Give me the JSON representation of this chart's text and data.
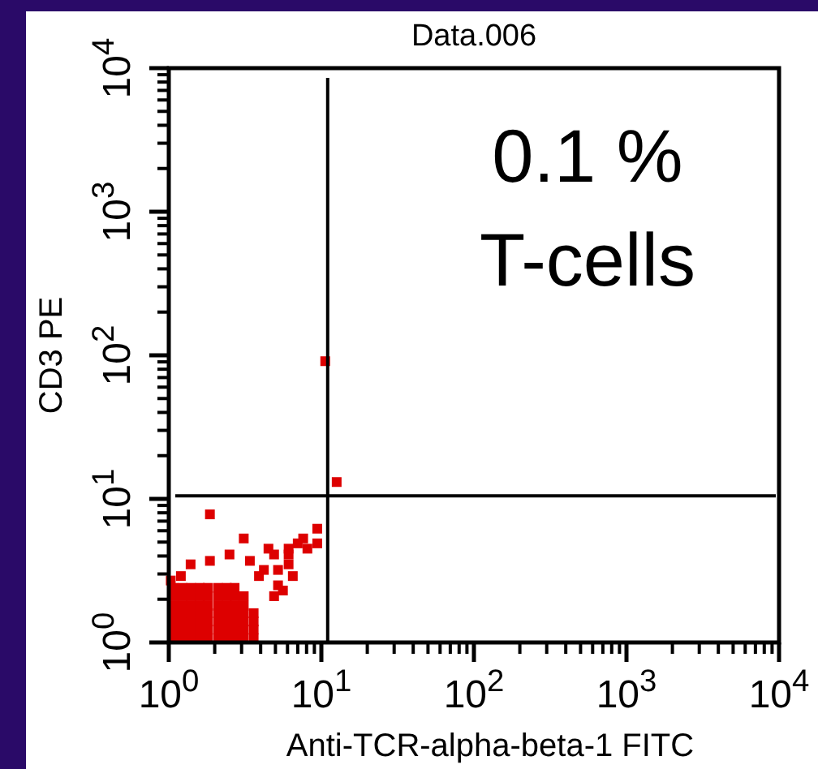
{
  "chart_data": {
    "type": "scatter",
    "title": "Data.006",
    "xlabel": "Anti-TCR-alpha-beta-1 FITC",
    "ylabel": "CD3 PE",
    "log": "xy",
    "marker": "square",
    "xlim": [
      1,
      10000
    ],
    "ylim": [
      1,
      10000
    ],
    "xticks": [
      {
        "value": 1,
        "label": "10$^{0}$"
      },
      {
        "value": 10,
        "label": "10$^{1}$"
      },
      {
        "value": 100,
        "label": "10$^{2}$"
      },
      {
        "value": 1000,
        "label": "10$^{3}$"
      },
      {
        "value": 10000,
        "label": "10$^{4}$"
      }
    ],
    "yticks": [
      {
        "value": 1,
        "label": "10$^{0}$"
      },
      {
        "value": 10,
        "label": "10$^{1}$"
      },
      {
        "value": 100,
        "label": "10$^{2}$"
      },
      {
        "value": 1000,
        "label": "10$^{3}$"
      },
      {
        "value": 10000,
        "label": "10$^{4}$"
      }
    ],
    "annotations": [
      "0.1 %",
      "T-cells"
    ],
    "ref_lines": [
      {
        "axis": "x",
        "value": 11,
        "color": "#000000"
      },
      {
        "axis": "y",
        "value": 10.5,
        "color": "#000000"
      }
    ],
    "series": [
      {
        "color": "#dd0000",
        "x": [
          1.07,
          1.23,
          1.4,
          1.6,
          1.8,
          2.1,
          2.4,
          2.7,
          3.1,
          3.6,
          1.07,
          1.23,
          1.4,
          1.6,
          1.8,
          2.1,
          2.4,
          2.7,
          3.1,
          3.6,
          1.07,
          1.23,
          1.4,
          1.6,
          1.8,
          2.1,
          2.4,
          2.7,
          3.1,
          3.6,
          1.07,
          1.23,
          1.4,
          1.6,
          1.8,
          2.1,
          2.4,
          2.7,
          3.1,
          3.6,
          1.07,
          1.23,
          1.4,
          1.6,
          1.8,
          2.1,
          2.4,
          2.7,
          3.1,
          1.07,
          1.23,
          1.4,
          1.6,
          1.8,
          2.1,
          2.4,
          2.7,
          3.1,
          1.07,
          1.23,
          1.4,
          1.6,
          1.8,
          2.1,
          2.4,
          2.7,
          12.6,
          10.6,
          1.86,
          9.4,
          3.1,
          7.6,
          9.4,
          7.0,
          8.1,
          4.5,
          6.1,
          2.5,
          4.9,
          6.1,
          1.39,
          1.86,
          3.4,
          6.1,
          5.2,
          4.2,
          6.5,
          3.9,
          1.2,
          5.2,
          5.6,
          4.9,
          1.03
        ],
        "values": [
          1.07,
          1.07,
          1.07,
          1.07,
          1.07,
          1.07,
          1.07,
          1.07,
          1.07,
          1.07,
          1.23,
          1.23,
          1.23,
          1.23,
          1.23,
          1.23,
          1.23,
          1.23,
          1.23,
          1.23,
          1.4,
          1.4,
          1.4,
          1.4,
          1.4,
          1.4,
          1.4,
          1.4,
          1.4,
          1.4,
          1.6,
          1.6,
          1.6,
          1.6,
          1.6,
          1.6,
          1.6,
          1.6,
          1.6,
          1.6,
          1.8,
          1.8,
          1.8,
          1.8,
          1.8,
          1.8,
          1.8,
          1.8,
          1.8,
          2.1,
          2.1,
          2.1,
          2.1,
          2.1,
          2.1,
          2.1,
          2.1,
          2.1,
          2.4,
          2.4,
          2.4,
          2.4,
          2.4,
          2.4,
          2.4,
          2.4,
          13.1,
          91,
          7.8,
          6.2,
          5.3,
          5.3,
          4.9,
          4.9,
          4.5,
          4.5,
          4.5,
          4.1,
          4.1,
          4.1,
          3.5,
          3.7,
          3.7,
          3.5,
          3.2,
          3.2,
          2.9,
          2.9,
          2.9,
          2.5,
          2.3,
          2.1,
          2.7
        ]
      }
    ]
  }
}
